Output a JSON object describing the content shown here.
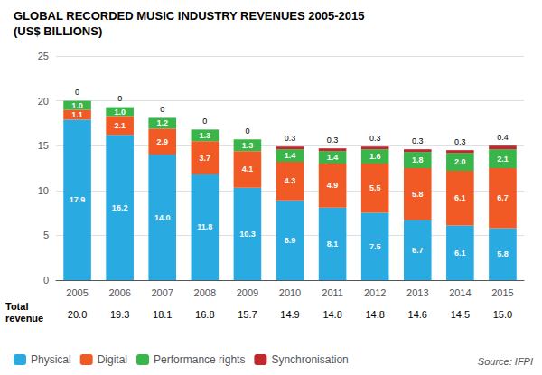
{
  "chart_data": {
    "type": "bar",
    "title": "GLOBAL RECORDED MUSIC INDUSTRY REVENUES 2005-2015",
    "subtitle": "(US$ BILLIONS)",
    "categories": [
      "2005",
      "2006",
      "2007",
      "2008",
      "2009",
      "2010",
      "2011",
      "2012",
      "2013",
      "2014",
      "2015"
    ],
    "stacked": true,
    "data_labels": true,
    "series": [
      {
        "name": "Physical",
        "color": "#29abe2",
        "values": [
          17.9,
          16.2,
          14.0,
          11.8,
          10.3,
          8.9,
          8.1,
          7.5,
          6.7,
          6.1,
          5.8
        ],
        "value_labels": [
          "17.9",
          "16.2",
          "14.0",
          "11.8",
          "10.3",
          "8.9",
          "8.1",
          "7.5",
          "6.7",
          "6.1",
          "5.8"
        ]
      },
      {
        "name": "Digital",
        "color": "#f15a24",
        "values": [
          1.1,
          2.1,
          2.9,
          3.7,
          4.1,
          4.3,
          4.9,
          5.5,
          5.8,
          6.1,
          6.7
        ],
        "value_labels": [
          "1.1",
          "2.1",
          "2.9",
          "3.7",
          "4.1",
          "4.3",
          "4.9",
          "5.5",
          "5.8",
          "6.1",
          "6.7"
        ]
      },
      {
        "name": "Performance rights",
        "color": "#39b54a",
        "values": [
          1.0,
          1.0,
          1.2,
          1.3,
          1.3,
          1.4,
          1.4,
          1.6,
          1.8,
          2.0,
          2.1
        ],
        "value_labels": [
          "1.0",
          "1.0",
          "1.2",
          "1.3",
          "1.3",
          "1.4",
          "1.4",
          "1.6",
          "1.8",
          "2.0",
          "2.1"
        ]
      },
      {
        "name": "Synchronisation",
        "color": "#c1272d",
        "values": [
          0.0,
          0.0,
          0.0,
          0.0,
          0.0,
          0.3,
          0.3,
          0.3,
          0.3,
          0.3,
          0.4
        ],
        "value_labels": [
          "0",
          "0",
          "0",
          "0",
          "0",
          "0.3",
          "0.3",
          "0.3",
          "0.3",
          "0.3",
          "0.4"
        ]
      }
    ],
    "totals": {
      "label": "Total\nrevenue",
      "values": [
        20.0,
        19.3,
        18.1,
        16.8,
        15.7,
        14.9,
        14.8,
        14.8,
        14.6,
        14.5,
        15.0
      ],
      "value_labels": [
        "20.0",
        "19.3",
        "18.1",
        "16.8",
        "15.7",
        "14.9",
        "14.8",
        "14.8",
        "14.6",
        "14.5",
        "15.0"
      ]
    },
    "source": "Source: IFPI",
    "ylim": [
      0,
      25
    ],
    "yticks": [
      0,
      5,
      10,
      15,
      20,
      25
    ],
    "grid": true,
    "legend": "lower left"
  }
}
